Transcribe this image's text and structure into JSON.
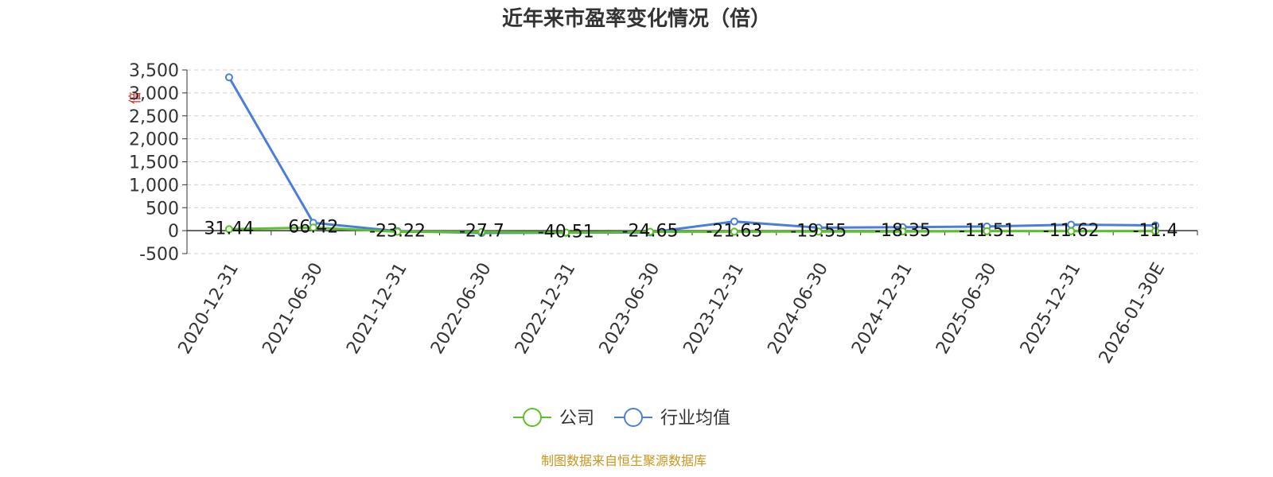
{
  "chart_data": {
    "type": "line",
    "title": "近年来市盈率变化情况（倍）",
    "ylabel": "倍",
    "ylim": [
      -500,
      3500
    ],
    "yticks": [
      3500,
      3000,
      2500,
      2000,
      1500,
      1000,
      500,
      0,
      -500
    ],
    "ytick_labels": [
      "3,500",
      "3,000",
      "2,500",
      "2,000",
      "1,500",
      "1,000",
      "500",
      "0",
      "-500"
    ],
    "categories": [
      "2020-12-31",
      "2021-06-30",
      "2021-12-31",
      "2022-06-30",
      "2022-12-31",
      "2023-06-30",
      "2023-12-31",
      "2024-06-30",
      "2024-12-31",
      "2025-06-30",
      "2025-12-31",
      "2026-01-30E"
    ],
    "grid": true,
    "legend_position": "bottom-center",
    "series": [
      {
        "name": "公司",
        "color": "#5cc128",
        "values": [
          31.44,
          66.42,
          -23.22,
          -27.7,
          -40.51,
          -24.65,
          -21.63,
          -19.55,
          -18.35,
          -11.51,
          -11.62,
          -11.4
        ],
        "labels": [
          "31.44",
          "66.42",
          "-23.22",
          "-27.7",
          "-40.51",
          "-24.65",
          "-21.63",
          "-19.55",
          "-18.35",
          "-11.51",
          "-11.62",
          "-11.4"
        ]
      },
      {
        "name": "行业均值",
        "color": "#4a7fd9",
        "values": [
          3340,
          170,
          -10,
          -50,
          -45,
          -40,
          200,
          65,
          75,
          90,
          130,
          115
        ]
      }
    ]
  },
  "source_text": "制图数据来自恒生聚源数据库"
}
